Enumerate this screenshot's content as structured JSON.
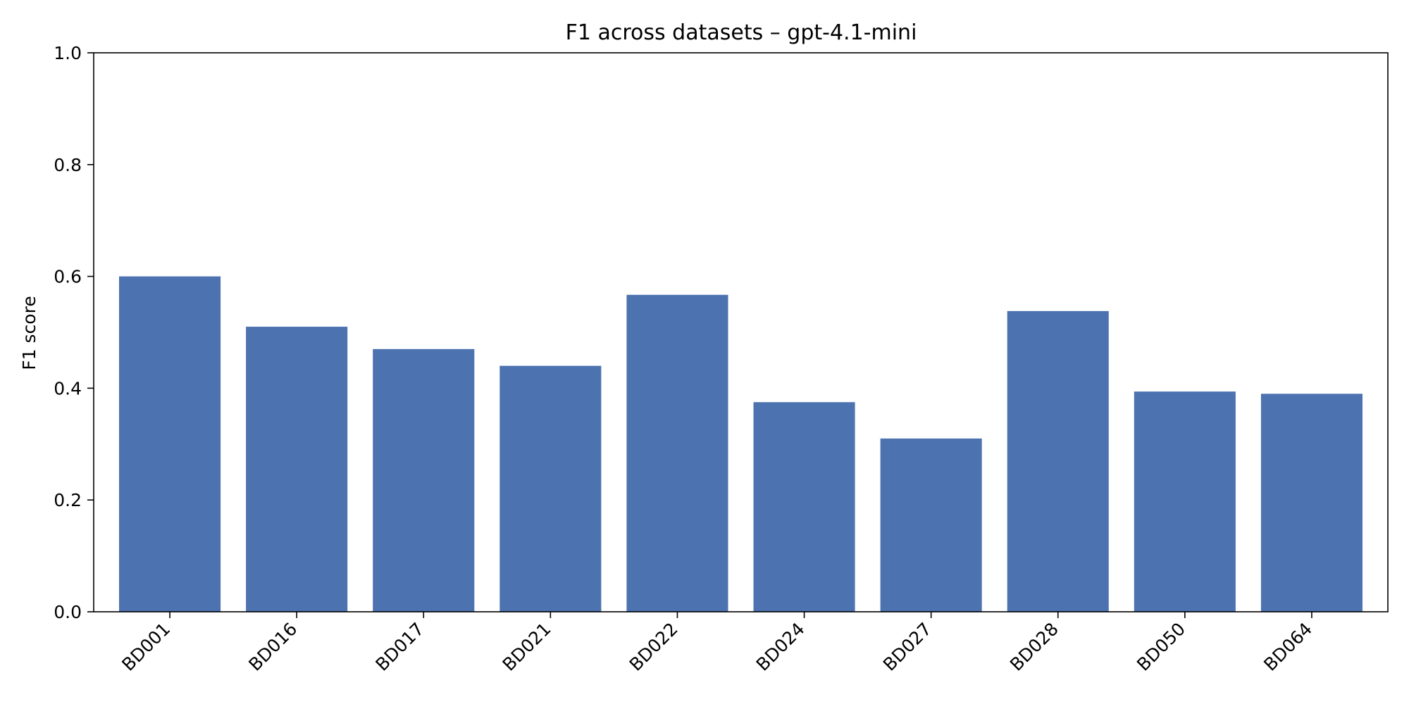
{
  "chart_data": {
    "type": "bar",
    "title": "F1 across datasets – gpt-4.1-mini",
    "xlabel": "",
    "ylabel": "F1 score",
    "categories": [
      "BD001",
      "BD016",
      "BD017",
      "BD021",
      "BD022",
      "BD024",
      "BD027",
      "BD028",
      "BD050",
      "BD064"
    ],
    "values": [
      0.6,
      0.51,
      0.47,
      0.44,
      0.567,
      0.375,
      0.31,
      0.538,
      0.394,
      0.39
    ],
    "ylim": [
      0,
      1.0
    ],
    "yticks": [
      "0.0",
      "0.2",
      "0.4",
      "0.6",
      "0.8",
      "1.0"
    ],
    "grid": false,
    "bar_color": "#4c72b0"
  }
}
